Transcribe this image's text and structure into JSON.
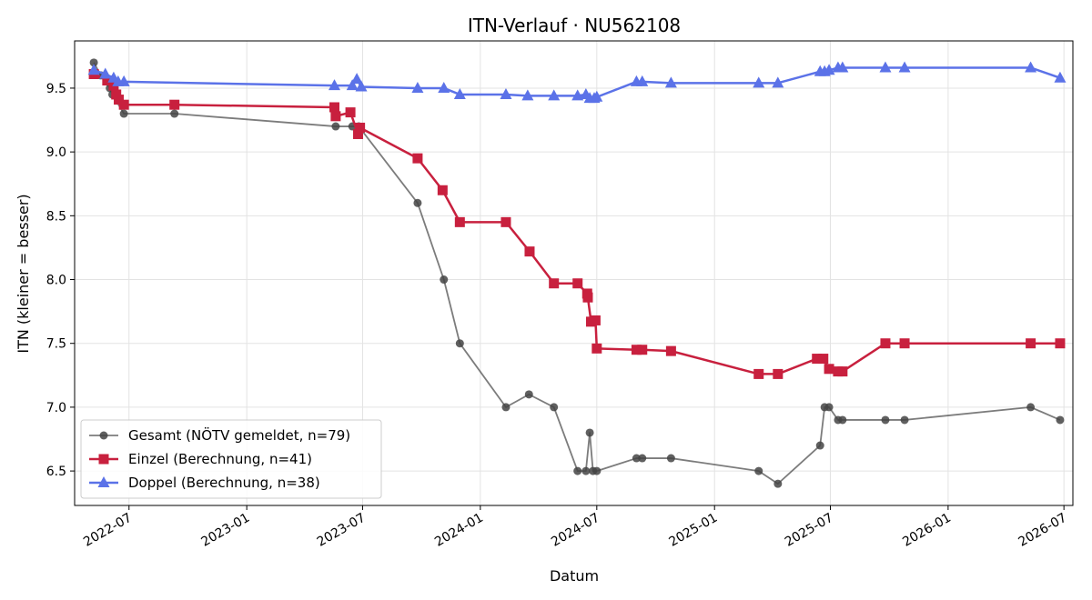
{
  "chart_data": {
    "type": "line",
    "title": "ITN-Verlauf · NU562108",
    "xlabel": "Datum",
    "ylabel": "ITN  (kleiner = besser)",
    "x_scale": "date",
    "xlim": [
      "2022-04-07",
      "2026-07-15"
    ],
    "ylim": [
      6.23,
      9.87
    ],
    "x_ticks": [
      "2022-07-01",
      "2023-01-01",
      "2023-07-01",
      "2024-01-01",
      "2024-07-01",
      "2025-01-01",
      "2025-07-01",
      "2026-01-01",
      "2026-07-01"
    ],
    "x_tick_labels": [
      "2022-07",
      "2023-01",
      "2023-07",
      "2024-01",
      "2024-07",
      "2025-01",
      "2025-07",
      "2026-01",
      "2026-07"
    ],
    "y_ticks": [
      6.5,
      7.0,
      7.5,
      8.0,
      8.5,
      9.0,
      9.5
    ],
    "y_tick_labels": [
      "6.5",
      "7.0",
      "7.5",
      "8.0",
      "8.5",
      "9.0",
      "9.5"
    ],
    "grid": true,
    "legend_position": "lower-left",
    "series": [
      {
        "name": "Gesamt (NÖTV gemeldet, n=79)",
        "color": "#444444",
        "marker": "circle",
        "points": [
          [
            "2022-05-07",
            9.7
          ],
          [
            "2022-05-18",
            9.6
          ],
          [
            "2022-06-01",
            9.5
          ],
          [
            "2022-06-05",
            9.45
          ],
          [
            "2022-06-23",
            9.3
          ],
          [
            "2022-09-10",
            9.3
          ],
          [
            "2023-05-20",
            9.2
          ],
          [
            "2023-06-15",
            9.2
          ],
          [
            "2023-06-25",
            9.2
          ],
          [
            "2023-09-25",
            8.6
          ],
          [
            "2023-11-05",
            8.0
          ],
          [
            "2023-11-30",
            7.5
          ],
          [
            "2024-02-10",
            7.0
          ],
          [
            "2024-03-17",
            7.1
          ],
          [
            "2024-04-25",
            7.0
          ],
          [
            "2024-06-01",
            6.5
          ],
          [
            "2024-06-14",
            6.5
          ],
          [
            "2024-06-20",
            6.8
          ],
          [
            "2024-06-25",
            6.5
          ],
          [
            "2024-07-01",
            6.5
          ],
          [
            "2024-09-01",
            6.6
          ],
          [
            "2024-09-10",
            6.6
          ],
          [
            "2024-10-25",
            6.6
          ],
          [
            "2025-03-11",
            6.5
          ],
          [
            "2025-04-10",
            6.4
          ],
          [
            "2025-06-15",
            6.7
          ],
          [
            "2025-06-22",
            7.0
          ],
          [
            "2025-06-29",
            7.0
          ],
          [
            "2025-07-13",
            6.9
          ],
          [
            "2025-07-20",
            6.9
          ],
          [
            "2025-09-25",
            6.9
          ],
          [
            "2025-10-25",
            6.9
          ],
          [
            "2026-05-10",
            7.0
          ],
          [
            "2026-06-25",
            6.9
          ]
        ]
      },
      {
        "name": "Einzel (Berechnung, n=41)",
        "color": "#c8203e",
        "marker": "square",
        "points": [
          [
            "2022-05-07",
            9.61
          ],
          [
            "2022-05-28",
            9.56
          ],
          [
            "2022-06-07",
            9.52
          ],
          [
            "2022-06-11",
            9.45
          ],
          [
            "2022-06-15",
            9.41
          ],
          [
            "2022-06-23",
            9.37
          ],
          [
            "2022-09-10",
            9.37
          ],
          [
            "2023-05-18",
            9.35
          ],
          [
            "2023-05-20",
            9.28
          ],
          [
            "2023-06-12",
            9.31
          ],
          [
            "2023-06-24",
            9.14
          ],
          [
            "2023-06-27",
            9.19
          ],
          [
            "2023-09-25",
            8.95
          ],
          [
            "2023-11-03",
            8.7
          ],
          [
            "2023-11-30",
            8.45
          ],
          [
            "2024-02-10",
            8.45
          ],
          [
            "2024-03-18",
            8.22
          ],
          [
            "2024-04-25",
            7.97
          ],
          [
            "2024-06-01",
            7.97
          ],
          [
            "2024-06-16",
            7.89
          ],
          [
            "2024-06-17",
            7.86
          ],
          [
            "2024-06-22",
            7.67
          ],
          [
            "2024-06-29",
            7.68
          ],
          [
            "2024-07-01",
            7.46
          ],
          [
            "2024-09-01",
            7.45
          ],
          [
            "2024-09-10",
            7.45
          ],
          [
            "2024-10-25",
            7.44
          ],
          [
            "2025-03-11",
            7.26
          ],
          [
            "2025-04-10",
            7.26
          ],
          [
            "2025-06-10",
            7.38
          ],
          [
            "2025-06-20",
            7.38
          ],
          [
            "2025-06-29",
            7.3
          ],
          [
            "2025-07-13",
            7.28
          ],
          [
            "2025-07-20",
            7.28
          ],
          [
            "2025-09-25",
            7.5
          ],
          [
            "2025-10-25",
            7.5
          ],
          [
            "2026-05-10",
            7.5
          ],
          [
            "2026-06-25",
            7.5
          ]
        ]
      },
      {
        "name": "Doppel (Berechnung, n=38)",
        "color": "#5b72e8",
        "marker": "triangle",
        "points": [
          [
            "2022-05-07",
            9.64
          ],
          [
            "2022-05-25",
            9.61
          ],
          [
            "2022-06-07",
            9.58
          ],
          [
            "2022-06-14",
            9.55
          ],
          [
            "2022-06-23",
            9.55
          ],
          [
            "2023-05-18",
            9.52
          ],
          [
            "2023-06-15",
            9.52
          ],
          [
            "2023-06-22",
            9.57
          ],
          [
            "2023-06-29",
            9.51
          ],
          [
            "2023-09-25",
            9.5
          ],
          [
            "2023-11-05",
            9.5
          ],
          [
            "2023-11-30",
            9.45
          ],
          [
            "2024-02-10",
            9.45
          ],
          [
            "2024-03-15",
            9.44
          ],
          [
            "2024-04-25",
            9.44
          ],
          [
            "2024-06-01",
            9.44
          ],
          [
            "2024-06-14",
            9.45
          ],
          [
            "2024-06-20",
            9.42
          ],
          [
            "2024-06-27",
            9.42
          ],
          [
            "2024-07-01",
            9.43
          ],
          [
            "2024-09-01",
            9.55
          ],
          [
            "2024-09-10",
            9.55
          ],
          [
            "2024-10-25",
            9.54
          ],
          [
            "2025-03-11",
            9.54
          ],
          [
            "2025-04-10",
            9.54
          ],
          [
            "2025-06-15",
            9.63
          ],
          [
            "2025-06-22",
            9.63
          ],
          [
            "2025-06-29",
            9.64
          ],
          [
            "2025-07-13",
            9.66
          ],
          [
            "2025-07-20",
            9.66
          ],
          [
            "2025-09-25",
            9.66
          ],
          [
            "2025-10-25",
            9.66
          ],
          [
            "2026-05-10",
            9.66
          ],
          [
            "2026-06-25",
            9.58
          ]
        ]
      }
    ]
  }
}
